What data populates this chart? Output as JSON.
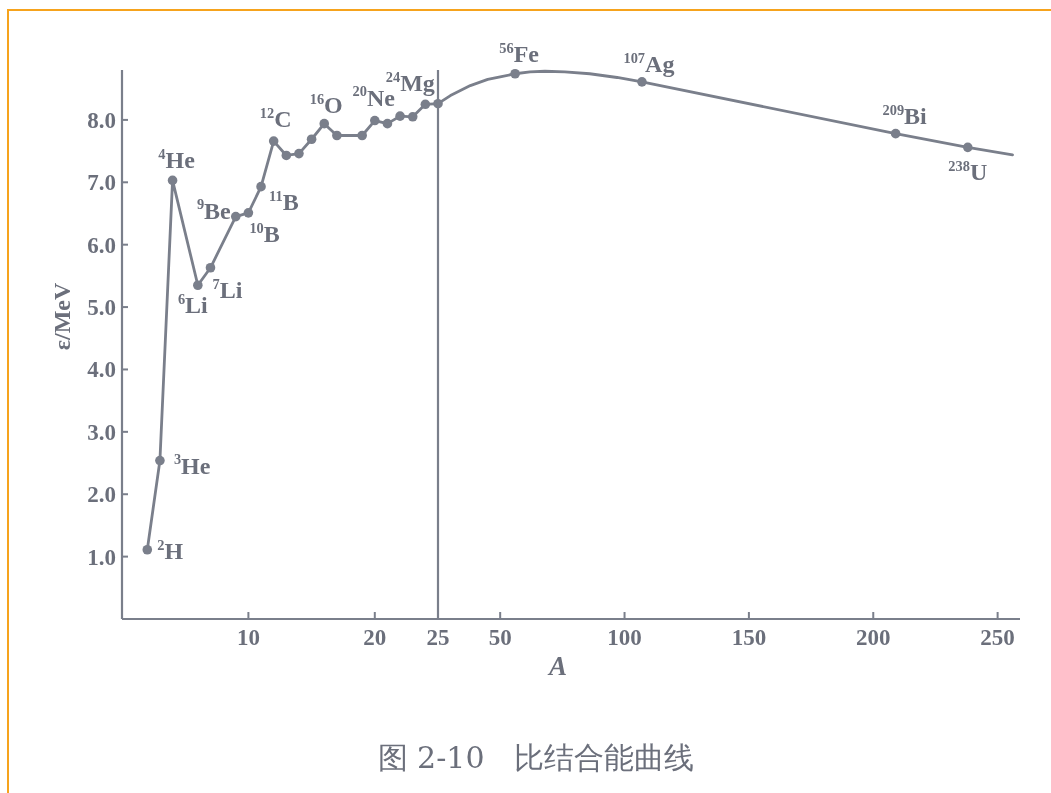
{
  "chart_data": [
    {
      "type": "line",
      "ylabel": "ε/MeV",
      "x": [
        2,
        3,
        4,
        6,
        7,
        9,
        10,
        11,
        12,
        13,
        14,
        15,
        16,
        17,
        19,
        20,
        21,
        22,
        23,
        24,
        25
      ],
      "series": [
        {
          "color": "#7a7f8b",
          "values": [
            1.11,
            2.54,
            7.03,
            5.35,
            5.63,
            6.45,
            6.51,
            6.93,
            7.66,
            7.43,
            7.46,
            7.69,
            7.94,
            7.75,
            7.75,
            7.99,
            7.94,
            8.06,
            8.05,
            8.25,
            8.26
          ]
        }
      ],
      "marker": "circle",
      "xlim": [
        0,
        25
      ],
      "xticks": [
        10,
        20,
        25
      ],
      "ylim": [
        0,
        8.8
      ],
      "yticks": [
        {
          "value": 1,
          "label": "1.0"
        },
        {
          "value": 2,
          "label": "2.0"
        },
        {
          "value": 3,
          "label": "3.0"
        },
        {
          "value": 4,
          "label": "4.0"
        },
        {
          "value": 5,
          "label": "5.0"
        },
        {
          "value": 6,
          "label": "6.0"
        },
        {
          "value": 7,
          "label": "7.0"
        },
        {
          "value": 8,
          "label": "8.0"
        }
      ],
      "annotations": [
        {
          "text": "$^{2}$H",
          "x": 2,
          "y": 1.11
        },
        {
          "text": "$^{3}$He",
          "x": 3,
          "y": 2.54
        },
        {
          "text": "$^{4}$He",
          "x": 4,
          "y": 7.03
        },
        {
          "text": "$^{6}$Li",
          "x": 6,
          "y": 5.35
        },
        {
          "text": "$^{7}$Li",
          "x": 7,
          "y": 5.63
        },
        {
          "text": "$^{9}$Be",
          "x": 9,
          "y": 6.45
        },
        {
          "text": "$^{10}$B",
          "x": 10,
          "y": 6.51
        },
        {
          "text": "$^{11}$B",
          "x": 11,
          "y": 6.93
        },
        {
          "text": "$^{12}$C",
          "x": 12,
          "y": 7.66
        },
        {
          "text": "$^{16}$O",
          "x": 16,
          "y": 7.94
        },
        {
          "text": "$^{20}$Ne",
          "x": 20,
          "y": 7.99
        },
        {
          "text": "$^{24}$Mg",
          "x": 24,
          "y": 8.25
        },
        "图 2-10　比结合能曲线"
      ]
    },
    {
      "type": "line",
      "xlabel": "A",
      "series": [
        {
          "color": "#7a7f8b",
          "x": [
            25,
            30,
            38,
            45,
            50,
            56,
            62,
            68,
            76,
            86,
            97,
            107,
            209,
            238,
            256
          ],
          "values": [
            8.26,
            8.39,
            8.55,
            8.65,
            8.69,
            8.74,
            8.77,
            8.78,
            8.77,
            8.74,
            8.68,
            8.61,
            7.78,
            7.56,
            7.44
          ]
        },
        {
          "type": "scatter",
          "marker": "circle",
          "color": "#7a7f8b",
          "x": [
            56,
            107,
            209,
            238
          ],
          "values": [
            8.74,
            8.61,
            7.78,
            7.56
          ]
        }
      ],
      "xlim": [
        25,
        259
      ],
      "xticks": [
        50,
        100,
        150,
        200,
        250
      ],
      "ylim": [
        0,
        8.8
      ],
      "tick_labels": "x",
      "annotations": [
        {
          "text": "$^{56}$Fe",
          "x": 56,
          "y": 8.74
        },
        {
          "text": "$^{107}$Ag",
          "x": 107,
          "y": 8.61
        },
        {
          "text": "$^{209}$Bi",
          "x": 209,
          "y": 7.78
        },
        {
          "text": "$^{238}$U",
          "x": 238,
          "y": 7.56
        }
      ]
    }
  ]
}
